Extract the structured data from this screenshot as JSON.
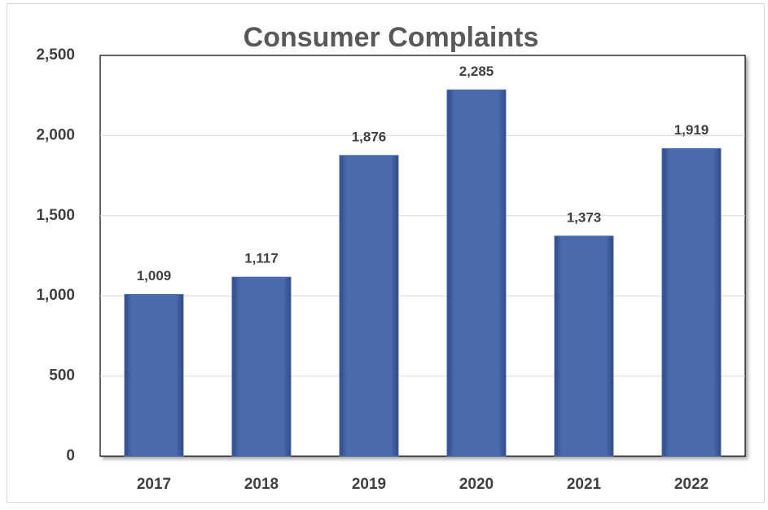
{
  "chart_data": {
    "type": "bar",
    "title": "Consumer Complaints",
    "categories": [
      "2017",
      "2018",
      "2019",
      "2020",
      "2021",
      "2022"
    ],
    "values": [
      1009,
      1117,
      1876,
      2285,
      1373,
      1919
    ],
    "value_labels": [
      "1,009",
      "1,117",
      "1,876",
      "2,285",
      "1,373",
      "1,919"
    ],
    "color": "#4a6aae",
    "ylim": [
      0,
      2500
    ],
    "yticks": [
      0,
      500,
      {
        "value": 1000,
        "label": "1,000"
      },
      {
        "value": 1500,
        "label": "1,500"
      },
      {
        "value": 2000,
        "label": "2,000"
      },
      {
        "value": 2500,
        "label": "2,500"
      }
    ],
    "grid": true
  }
}
